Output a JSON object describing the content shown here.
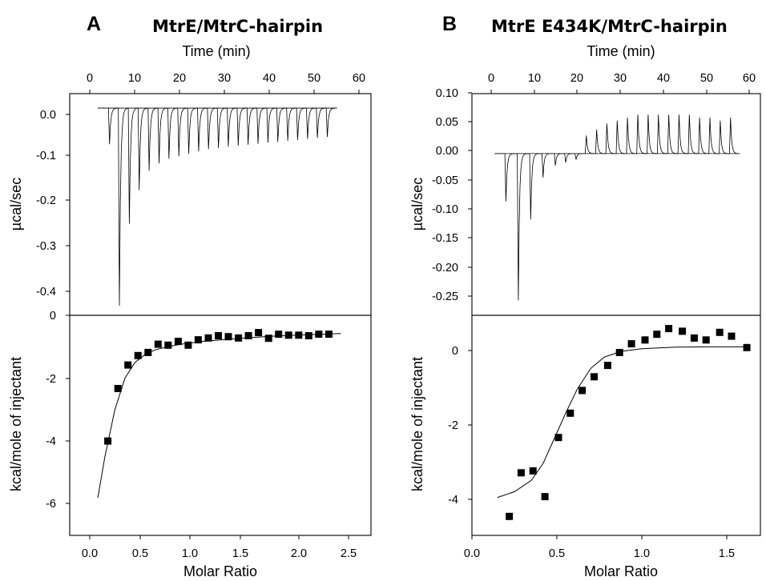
{
  "panels": [
    {
      "letter": "A",
      "title": "MtrE/MtrC-hairpin",
      "top_xlabel": "Time (min)",
      "top_ylabel": "µcal/sec",
      "bottom_ylabel": "kcal/mole of injectant",
      "bottom_xlabel": "Molar Ratio",
      "time_ticks": [
        "0",
        "10",
        "20",
        "30",
        "40",
        "50",
        "60"
      ],
      "raw_y_ticks": [
        "0.0",
        "-0.1",
        "-0.2",
        "-0.3",
        "-0.4",
        "0"
      ],
      "int_y_ticks": [
        "-2",
        "-4",
        "-6"
      ],
      "ratio_ticks": [
        "0.0",
        "0.5",
        "1.0",
        "1.5",
        "2.0",
        "2.5"
      ]
    },
    {
      "letter": "B",
      "title": "MtrE E434K/MtrC-hairpin",
      "top_xlabel": "Time (min)",
      "top_ylabel": "µcal/sec",
      "bottom_ylabel": "kcal/mole of injectant",
      "bottom_xlabel": "Molar Ratio",
      "time_ticks": [
        "0",
        "10",
        "20",
        "30",
        "40",
        "50",
        "60"
      ],
      "raw_y_ticks": [
        "0.10",
        "0.05",
        "0.00",
        "-0.05",
        "-0.10",
        "-0.15",
        "-0.20",
        "-0.25"
      ],
      "int_y_ticks": [
        "0",
        "-2",
        "-4"
      ],
      "ratio_ticks": [
        "0.0",
        "0.5",
        "1.0",
        "1.5"
      ]
    }
  ],
  "chart_data": [
    {
      "type": "line",
      "panel": "A-raw",
      "xlabel": "Time (min)",
      "ylabel": "µcal/sec",
      "xlim": [
        -5,
        65
      ],
      "ylim": [
        -0.43,
        0.03
      ],
      "baseline": 0.0,
      "injection_times": [
        4,
        6.3,
        8.6,
        10.9,
        13.2,
        15.5,
        17.8,
        20.1,
        22.4,
        24.7,
        27,
        29.3,
        31.6,
        33.9,
        36.2,
        38.5,
        40.8,
        43.1,
        45.4,
        47.7,
        50,
        52.3,
        54.6
      ],
      "peak_values": [
        -0.075,
        -0.41,
        -0.24,
        -0.17,
        -0.13,
        -0.115,
        -0.105,
        -0.1,
        -0.095,
        -0.09,
        -0.085,
        -0.083,
        -0.08,
        -0.078,
        -0.076,
        -0.074,
        -0.072,
        -0.07,
        -0.068,
        -0.066,
        -0.064,
        -0.062,
        -0.06
      ]
    },
    {
      "type": "scatter",
      "panel": "A-integrated",
      "xlabel": "Molar Ratio",
      "ylabel": "kcal/mole of injectant",
      "xlim": [
        -0.25,
        2.75
      ],
      "ylim": [
        -7,
        0
      ],
      "x": [
        0.13,
        0.23,
        0.33,
        0.43,
        0.53,
        0.63,
        0.73,
        0.83,
        0.93,
        1.03,
        1.13,
        1.23,
        1.33,
        1.43,
        1.53,
        1.63,
        1.73,
        1.83,
        1.93,
        2.03,
        2.13,
        2.23,
        2.33
      ],
      "y": [
        -4.0,
        -2.33,
        -1.58,
        -1.28,
        -1.18,
        -0.92,
        -0.95,
        -0.83,
        -0.95,
        -0.78,
        -0.72,
        -0.65,
        -0.68,
        -0.72,
        -0.65,
        -0.55,
        -0.73,
        -0.6,
        -0.63,
        -0.63,
        -0.65,
        -0.6,
        -0.6
      ],
      "fit": {
        "x": [
          0.03,
          0.1,
          0.2,
          0.3,
          0.4,
          0.5,
          0.6,
          0.75,
          0.9,
          1.1,
          1.3,
          1.5,
          1.8,
          2.1,
          2.45
        ],
        "y": [
          -5.8,
          -4.5,
          -3.0,
          -2.0,
          -1.5,
          -1.25,
          -1.1,
          -0.98,
          -0.9,
          -0.82,
          -0.77,
          -0.72,
          -0.66,
          -0.62,
          -0.58
        ]
      }
    },
    {
      "type": "line",
      "panel": "B-raw",
      "xlabel": "Time (min)",
      "ylabel": "µcal/sec",
      "xlim": [
        -5,
        65
      ],
      "ylim": [
        -0.27,
        0.1
      ],
      "baseline": 0.0,
      "injection_times": [
        3,
        6,
        9,
        12,
        15,
        17.5,
        20,
        22.5,
        25,
        27.5,
        30,
        32.5,
        35,
        37.5,
        40,
        42.5,
        45,
        47.5,
        50,
        52.5,
        55,
        57.5
      ],
      "peak_values": [
        -0.08,
        -0.245,
        -0.11,
        -0.04,
        -0.02,
        -0.015,
        -0.01,
        0.03,
        0.04,
        0.05,
        0.055,
        0.06,
        0.065,
        0.065,
        0.065,
        0.065,
        0.065,
        0.065,
        0.06,
        0.06,
        0.055,
        0.06
      ]
    },
    {
      "type": "scatter",
      "panel": "B-integrated",
      "xlabel": "Molar Ratio",
      "ylabel": "kcal/mole of injectant",
      "xlim": [
        0,
        1.7
      ],
      "ylim": [
        -5,
        0.8
      ],
      "x": [
        0.22,
        0.29,
        0.36,
        0.43,
        0.51,
        0.58,
        0.65,
        0.72,
        0.8,
        0.87,
        0.94,
        1.02,
        1.09,
        1.16,
        1.24,
        1.31,
        1.38,
        1.46,
        1.53,
        1.62
      ],
      "y": [
        -4.5,
        -3.35,
        -3.3,
        -3.98,
        -2.42,
        -1.78,
        -1.18,
        -0.82,
        -0.52,
        -0.18,
        0.05,
        0.15,
        0.3,
        0.45,
        0.38,
        0.2,
        0.15,
        0.35,
        0.25,
        -0.05
      ],
      "fit": {
        "x": [
          0.15,
          0.25,
          0.35,
          0.42,
          0.48,
          0.55,
          0.62,
          0.7,
          0.78,
          0.88,
          1.0,
          1.2,
          1.4,
          1.62
        ],
        "y": [
          -4.0,
          -3.85,
          -3.55,
          -3.1,
          -2.5,
          -1.8,
          -1.15,
          -0.6,
          -0.3,
          -0.15,
          -0.08,
          -0.04,
          -0.03,
          -0.03
        ]
      }
    }
  ]
}
